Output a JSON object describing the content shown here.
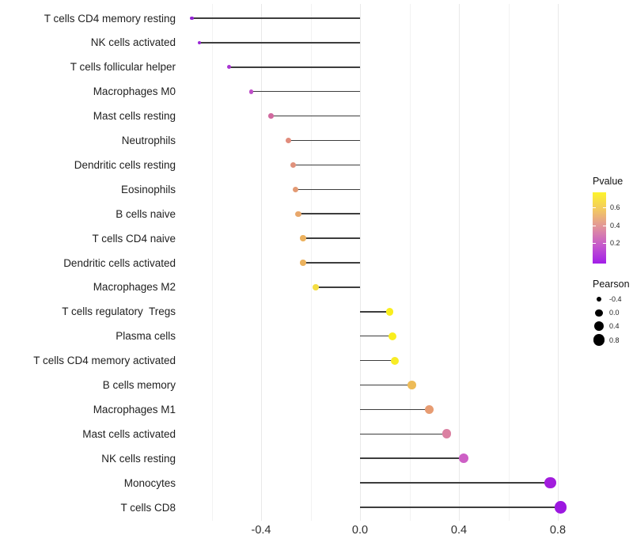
{
  "chart_data": {
    "type": "scatter",
    "subtype": "lollipop",
    "title": "",
    "xlabel": "",
    "ylabel": "",
    "grid": true,
    "legend_position": "right",
    "xlim": [
      -0.76,
      0.88
    ],
    "x_ticks": [
      -0.4,
      0.0,
      0.4,
      0.8
    ],
    "x_tick_labels": [
      "-0.4",
      "0.0",
      "0.4",
      "0.8"
    ],
    "x_minor_gridlines": [
      -0.6,
      -0.2,
      0.2,
      0.6
    ],
    "points": [
      {
        "label": "T cells CD4 memory resting",
        "pearson": -0.68,
        "color": "#9223d2"
      },
      {
        "label": "NK cells activated",
        "pearson": -0.65,
        "color": "#9a26d6"
      },
      {
        "label": "T cells follicular helper",
        "pearson": -0.53,
        "color": "#a935d2"
      },
      {
        "label": "Macrophages M0",
        "pearson": -0.44,
        "color": "#bf4fc9"
      },
      {
        "label": "Mast cells resting",
        "pearson": -0.36,
        "color": "#d1699f"
      },
      {
        "label": "Neutrophils",
        "pearson": -0.29,
        "color": "#e18c7c"
      },
      {
        "label": "Dendritic cells resting",
        "pearson": -0.27,
        "color": "#e0917b"
      },
      {
        "label": "Eosinophils",
        "pearson": -0.26,
        "color": "#e39a74"
      },
      {
        "label": "B cells naive",
        "pearson": -0.25,
        "color": "#e8a76b"
      },
      {
        "label": "T cells CD4 naive",
        "pearson": -0.23,
        "color": "#edb25f"
      },
      {
        "label": "Dendritic cells activated",
        "pearson": -0.23,
        "color": "#ecb25d"
      },
      {
        "label": "Macrophages M2",
        "pearson": -0.18,
        "color": "#f4dd42"
      },
      {
        "label": "T cells regulatory  Tregs",
        "pearson": 0.12,
        "color": "#f9ee1e"
      },
      {
        "label": "Plasma cells",
        "pearson": 0.13,
        "color": "#f9ee1e"
      },
      {
        "label": "T cells CD4 memory activated",
        "pearson": 0.14,
        "color": "#f8ec26"
      },
      {
        "label": "B cells memory",
        "pearson": 0.21,
        "color": "#edbb57"
      },
      {
        "label": "Macrophages M1",
        "pearson": 0.28,
        "color": "#e79c72"
      },
      {
        "label": "Mast cells activated",
        "pearson": 0.35,
        "color": "#db81a2"
      },
      {
        "label": "NK cells resting",
        "pearson": 0.42,
        "color": "#cd5fc5"
      },
      {
        "label": "Monocytes",
        "pearson": 0.77,
        "color": "#a21ddd"
      },
      {
        "label": "T cells CD8",
        "pearson": 0.81,
        "color": "#9c18e0"
      }
    ],
    "color_legend": {
      "title": "Pvalue",
      "tick_labels": [
        "0.6",
        "0.4",
        "0.2"
      ],
      "gradient_bottom_to_top": [
        "#a21ee8",
        "#c558cd",
        "#e0909e",
        "#f2c763",
        "#fdf42c"
      ]
    },
    "size_legend": {
      "title": "Pearson",
      "tick_labels": [
        "-0.4",
        "0.0",
        "0.4",
        "0.8"
      ],
      "tick_values": [
        -0.4,
        0.0,
        0.4,
        0.8
      ],
      "dot_color": "#000000"
    }
  },
  "style_colors": {
    "stem": "#3d3d3d",
    "grid_major": "#e9e9e9",
    "grid_minor": "#f2f2f2"
  }
}
